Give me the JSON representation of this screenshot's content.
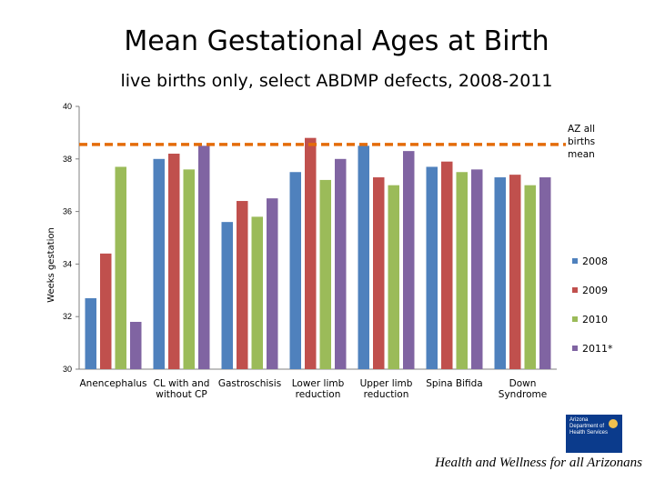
{
  "colors": {
    "series": [
      "#4f81bd",
      "#c0504d",
      "#9bbb59",
      "#8064a2"
    ],
    "mean_line": "#e46c0a",
    "axis": "#808080"
  },
  "footer": "Health and Wellness for all Arizonans",
  "logo": {
    "lines": [
      "Arizona",
      "Department of",
      "Health Services"
    ]
  },
  "chart_data": {
    "type": "bar",
    "title": "Mean Gestational Ages at Birth",
    "subtitle": "live births only, select ABDMP defects, 2008-2011",
    "ylabel": "Weeks gestation",
    "xlabel": "",
    "ylim": [
      30,
      40
    ],
    "yticks": [
      30,
      32,
      34,
      36,
      38,
      40
    ],
    "categories": [
      [
        "Anencephalus"
      ],
      [
        "CL with and",
        "without CP"
      ],
      [
        "Gastroschisis"
      ],
      [
        "Lower limb",
        "reduction"
      ],
      [
        "Upper limb",
        "reduction"
      ],
      [
        "Spina Bifida"
      ],
      [
        "Down",
        "Syndrome"
      ]
    ],
    "series": [
      {
        "name": "2008",
        "values": [
          32.7,
          38.0,
          35.6,
          37.5,
          38.5,
          37.7,
          37.3
        ]
      },
      {
        "name": "2009",
        "values": [
          34.4,
          38.2,
          36.4,
          38.8,
          37.3,
          37.9,
          37.4
        ]
      },
      {
        "name": "2010",
        "values": [
          37.7,
          37.6,
          35.8,
          37.2,
          37.0,
          37.5,
          37.0
        ]
      },
      {
        "name": "2011*",
        "values": [
          31.8,
          38.5,
          36.5,
          38.0,
          38.3,
          37.6,
          37.3
        ]
      }
    ],
    "reference_line": {
      "value": 38.55,
      "label": [
        "AZ all",
        "births",
        "mean"
      ]
    },
    "legend_position": "right"
  }
}
